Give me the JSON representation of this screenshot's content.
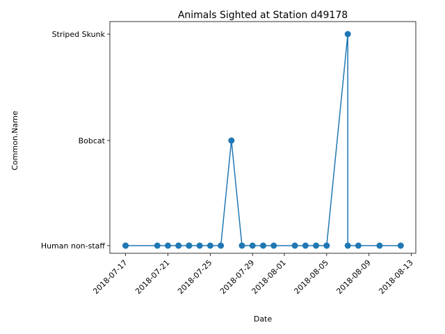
{
  "chart_data": {
    "type": "line",
    "title": "Animals Sighted at Station d49178",
    "xlabel": "Date",
    "ylabel": "Common.Name",
    "categories": [
      "Human non-staff",
      "Bobcat",
      "Striped Skunk"
    ],
    "x_ticks": [
      "2018-07-17",
      "2018-07-21",
      "2018-07-25",
      "2018-07-29",
      "2018-08-01",
      "2018-08-05",
      "2018-08-09",
      "2018-08-13"
    ],
    "xlim": [
      "2018-07-16",
      "2018-08-13"
    ],
    "grid": false,
    "series": [
      {
        "color": "#1f77b4",
        "points": [
          {
            "x": "2018-07-17",
            "y": "Human non-staff"
          },
          {
            "x": "2018-07-17",
            "y": "Human non-staff"
          },
          {
            "x": "2018-07-20",
            "y": "Human non-staff"
          },
          {
            "x": "2018-07-21",
            "y": "Human non-staff"
          },
          {
            "x": "2018-07-22",
            "y": "Human non-staff"
          },
          {
            "x": "2018-07-22",
            "y": "Human non-staff"
          },
          {
            "x": "2018-07-23",
            "y": "Human non-staff"
          },
          {
            "x": "2018-07-23",
            "y": "Human non-staff"
          },
          {
            "x": "2018-07-24",
            "y": "Human non-staff"
          },
          {
            "x": "2018-07-25",
            "y": "Human non-staff"
          },
          {
            "x": "2018-07-26",
            "y": "Human non-staff"
          },
          {
            "x": "2018-07-27",
            "y": "Bobcat"
          },
          {
            "x": "2018-07-28",
            "y": "Human non-staff"
          },
          {
            "x": "2018-07-29",
            "y": "Human non-staff"
          },
          {
            "x": "2018-07-30",
            "y": "Human non-staff"
          },
          {
            "x": "2018-07-31",
            "y": "Human non-staff"
          },
          {
            "x": "2018-08-02",
            "y": "Human non-staff"
          },
          {
            "x": "2018-08-03",
            "y": "Human non-staff"
          },
          {
            "x": "2018-08-04",
            "y": "Human non-staff"
          },
          {
            "x": "2018-08-05",
            "y": "Human non-staff"
          },
          {
            "x": "2018-08-05",
            "y": "Human non-staff"
          },
          {
            "x": "2018-08-07",
            "y": "Striped Skunk"
          },
          {
            "x": "2018-08-07",
            "y": "Human non-staff"
          },
          {
            "x": "2018-08-08",
            "y": "Human non-staff"
          },
          {
            "x": "2018-08-10",
            "y": "Human non-staff"
          },
          {
            "x": "2018-08-12",
            "y": "Human non-staff"
          }
        ]
      }
    ]
  }
}
